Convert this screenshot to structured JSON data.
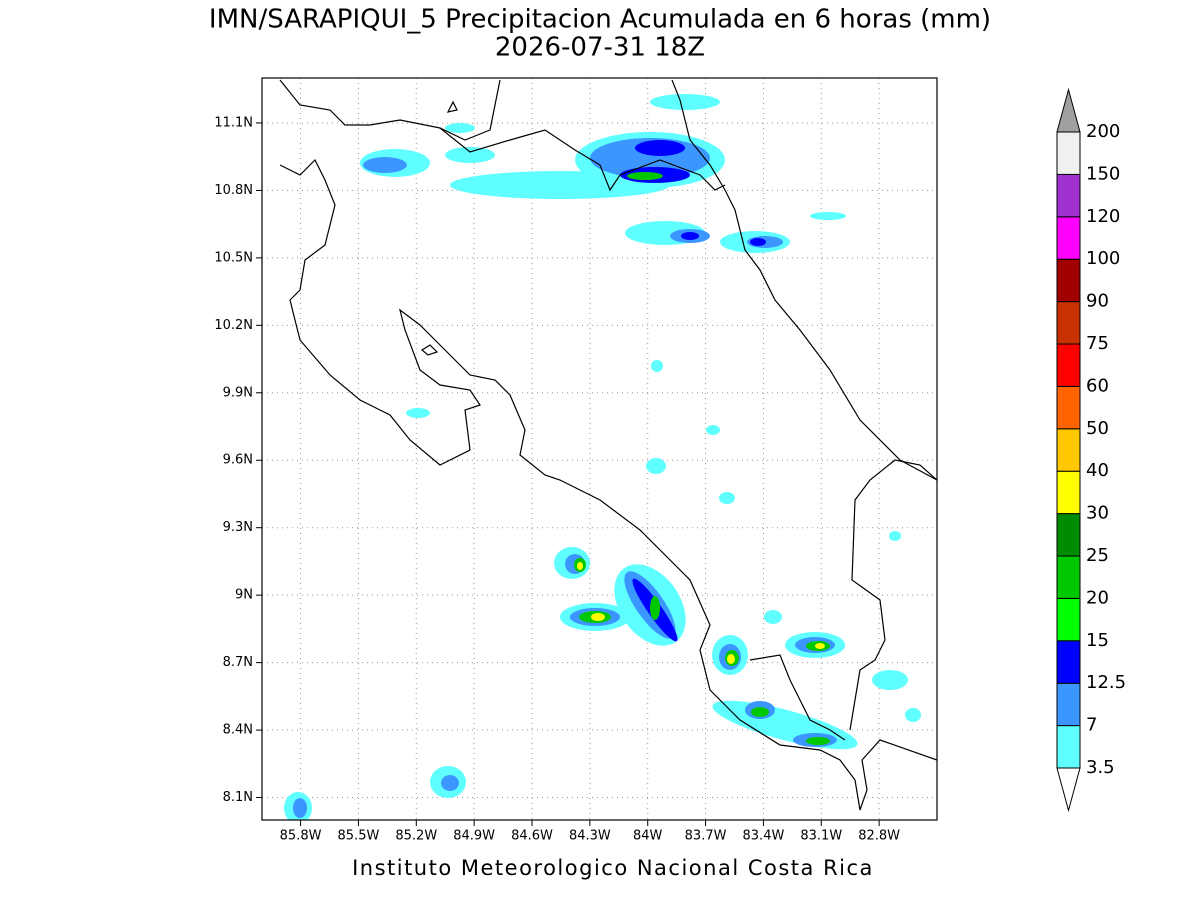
{
  "title": "IMN/SARAPIQUI_5 Precipitacion Acumulada en 6 horas (mm)",
  "subtitle": "2026-07-31 18Z",
  "footer": "Instituto Meteorologico Nacional Costa Rica",
  "map": {
    "lonlim": [
      -86.0,
      -82.5
    ],
    "latlim": [
      8.0,
      11.3
    ],
    "grid": true,
    "lon_ticks": [
      {
        "value": -85.8,
        "label": "85.8W"
      },
      {
        "value": -85.5,
        "label": "85.5W"
      },
      {
        "value": -85.2,
        "label": "85.2W"
      },
      {
        "value": -84.9,
        "label": "84.9W"
      },
      {
        "value": -84.6,
        "label": "84.6W"
      },
      {
        "value": -84.3,
        "label": "84.3W"
      },
      {
        "value": -84.0,
        "label": "84W"
      },
      {
        "value": -83.7,
        "label": "83.7W"
      },
      {
        "value": -83.4,
        "label": "83.4W"
      },
      {
        "value": -83.1,
        "label": "83.1W"
      },
      {
        "value": -82.8,
        "label": "82.8W"
      }
    ],
    "lat_ticks": [
      {
        "value": 8.1,
        "label": "8.1N"
      },
      {
        "value": 8.4,
        "label": "8.4N"
      },
      {
        "value": 8.7,
        "label": "8.7N"
      },
      {
        "value": 9.0,
        "label": "9N"
      },
      {
        "value": 9.3,
        "label": "9.3N"
      },
      {
        "value": 9.6,
        "label": "9.6N"
      },
      {
        "value": 9.9,
        "label": "9.9N"
      },
      {
        "value": 10.2,
        "label": "10.2N"
      },
      {
        "value": 10.5,
        "label": "10.5N"
      },
      {
        "value": 10.8,
        "label": "10.8N"
      },
      {
        "value": 11.1,
        "label": "11.1N"
      }
    ]
  },
  "colorbar": {
    "levels": [
      3.5,
      7,
      12.5,
      15,
      20,
      25,
      30,
      40,
      50,
      60,
      75,
      90,
      100,
      120,
      150,
      200
    ],
    "colors": [
      "#60ffff",
      "#3c96ff",
      "#0000ff",
      "#00ff00",
      "#00c800",
      "#008c00",
      "#ffff00",
      "#ffc800",
      "#ff6400",
      "#ff0000",
      "#c83200",
      "#a00000",
      "#ff00ff",
      "#a032d2",
      "#f0f0f0"
    ],
    "under_color": "#ffffff",
    "over_color": "#a0a0a0"
  }
}
